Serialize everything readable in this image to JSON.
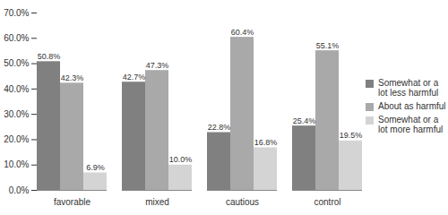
{
  "chart_data": {
    "type": "bar",
    "categories": [
      "favorable",
      "mixed",
      "cautious",
      "control"
    ],
    "series": [
      {
        "name": "Somewhat or a lot less harmful",
        "color": "#808080",
        "values": [
          50.8,
          42.7,
          22.8,
          25.4
        ],
        "value_labels": [
          "50.8%",
          "42.7%",
          "22.8%",
          "25.4%"
        ]
      },
      {
        "name": "About as harmful",
        "color": "#a9a9a9",
        "values": [
          42.3,
          47.3,
          60.4,
          55.1
        ],
        "value_labels": [
          "42.3%",
          "47.3%",
          "60.4%",
          "55.1%"
        ]
      },
      {
        "name": "Somewhat or a lot more harmful",
        "color": "#d4d4d4",
        "values": [
          6.9,
          10.0,
          16.8,
          19.5
        ],
        "value_labels": [
          "6.9%",
          "10.0%",
          "16.8%",
          "19.5%"
        ]
      }
    ],
    "ylim": [
      0,
      70
    ],
    "yticks": [
      {
        "value": 0,
        "label": "0.0%"
      },
      {
        "value": 10,
        "label": "10.0%"
      },
      {
        "value": 20,
        "label": "20.0%"
      },
      {
        "value": 30,
        "label": "30.0%"
      },
      {
        "value": 40,
        "label": "40.0%"
      },
      {
        "value": 50,
        "label": "50.0%"
      },
      {
        "value": 60,
        "label": "60.0%"
      },
      {
        "value": 70,
        "label": "70.0%"
      }
    ],
    "grid": false,
    "data_labels": true,
    "legend": "right"
  }
}
